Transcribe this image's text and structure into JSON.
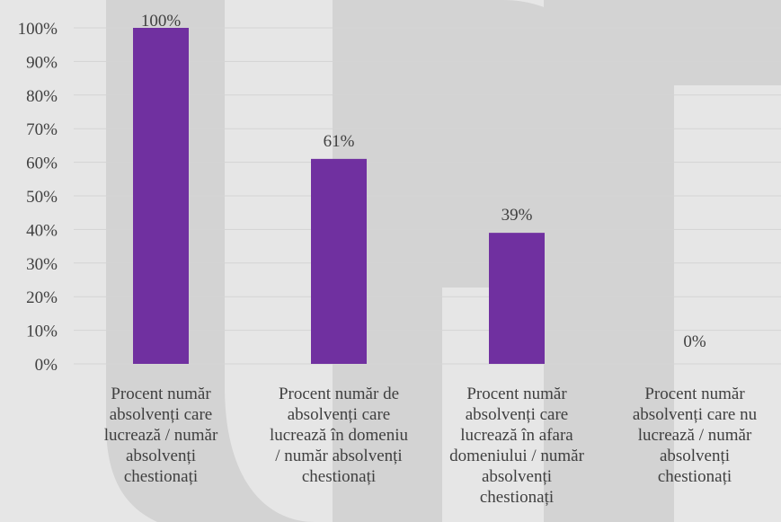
{
  "chart_data": {
    "type": "bar",
    "categories": [
      [
        "Procent număr",
        "absolvenți care",
        "lucrează / număr",
        "absolvenți",
        "chestionați"
      ],
      [
        "Procent număr de",
        "absolvenți care",
        "lucrează în domeniu",
        "/ număr absolvenți",
        "chestionați"
      ],
      [
        "Procent număr",
        "absolvenți care",
        "lucrează în afara",
        "domeniului / număr",
        "absolvenți",
        "chestionați"
      ],
      [
        "Procent număr",
        "absolvenți care nu",
        "lucrează / număr",
        "absolvenți",
        "chestionați"
      ]
    ],
    "values": [
      100,
      61,
      39,
      0
    ],
    "data_labels": [
      "100%",
      "61%",
      "39%",
      "0%"
    ],
    "ylim": [
      0,
      100
    ],
    "yticks": [
      0,
      10,
      20,
      30,
      40,
      50,
      60,
      70,
      80,
      90,
      100
    ],
    "ytick_labels": [
      "0%",
      "10%",
      "20%",
      "30%",
      "40%",
      "50%",
      "60%",
      "70%",
      "80%",
      "90%",
      "100%"
    ],
    "grid": true,
    "legend": "none",
    "colors": {
      "bar": "#7030a0",
      "background": "#e6e6e6",
      "grid": "#d4d4d4",
      "watermark": "#d3d3d3",
      "text": "#404040"
    }
  }
}
